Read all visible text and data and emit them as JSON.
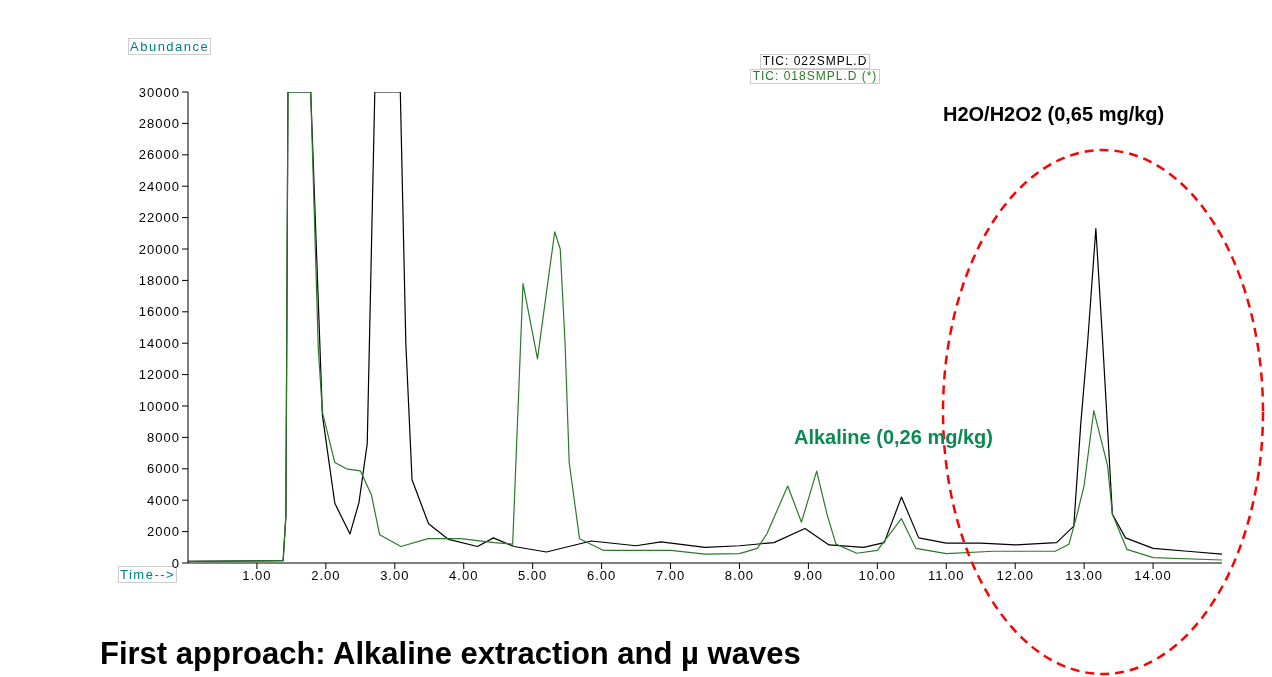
{
  "chart_data": {
    "type": "line",
    "ylabel": "Abundance",
    "xlabel": "Time-->",
    "legend": "top",
    "marker": "none",
    "line_style": "solid",
    "grid": false,
    "xlim": [
      0,
      15
    ],
    "xticks": [
      {
        "value": 1,
        "label": "1.00"
      },
      {
        "value": 2,
        "label": "2.00"
      },
      {
        "value": 3,
        "label": "3.00"
      },
      {
        "value": 4,
        "label": "4.00"
      },
      {
        "value": 5,
        "label": "5.00"
      },
      {
        "value": 6,
        "label": "6.00"
      },
      {
        "value": 7,
        "label": "7.00"
      },
      {
        "value": 8,
        "label": "8.00"
      },
      {
        "value": 9,
        "label": "9.00"
      },
      {
        "value": 10,
        "label": "10.00"
      },
      {
        "value": 11,
        "label": "11.00"
      },
      {
        "value": 12,
        "label": "12.00"
      },
      {
        "value": 13,
        "label": "13.00"
      },
      {
        "value": 14,
        "label": "14.00"
      }
    ],
    "ylim": [
      0,
      30000
    ],
    "yticks": [
      0,
      2000,
      4000,
      6000,
      8000,
      10000,
      12000,
      14000,
      16000,
      18000,
      20000,
      22000,
      24000,
      26000,
      28000,
      30000
    ],
    "series": [
      {
        "name": "TIC: 022SMPL.D",
        "color": "#000000",
        "x": [
          0,
          1.38,
          1.42,
          1.45,
          1.78,
          1.95,
          2.13,
          2.35,
          2.48,
          2.6,
          2.71,
          3.08,
          3.16,
          3.25,
          3.49,
          3.78,
          4.2,
          4.43,
          4.73,
          5.2,
          5.85,
          6.5,
          6.86,
          7.5,
          8.0,
          8.5,
          8.95,
          9.3,
          9.8,
          10.1,
          10.35,
          10.6,
          11.0,
          11.5,
          12.0,
          12.6,
          12.85,
          12.95,
          13.05,
          13.17,
          13.27,
          13.41,
          13.6,
          14.0,
          14.5,
          15.0
        ],
        "values": [
          100,
          150,
          3000,
          30000,
          30000,
          9400,
          3800,
          1850,
          3850,
          7600,
          30000,
          30000,
          14000,
          5300,
          2500,
          1500,
          1050,
          1600,
          1050,
          700,
          1400,
          1100,
          1350,
          1000,
          1100,
          1300,
          2200,
          1150,
          1000,
          1300,
          4200,
          1600,
          1270,
          1270,
          1150,
          1300,
          2350,
          8800,
          14000,
          21300,
          14000,
          3100,
          1600,
          930,
          750,
          560
        ]
      },
      {
        "name": "TIC: 018SMPL.D (*)",
        "color": "#2a7a2a",
        "x": [
          0,
          1.38,
          1.42,
          1.45,
          1.78,
          1.8,
          1.89,
          1.95,
          2.13,
          2.3,
          2.5,
          2.66,
          2.78,
          3.09,
          3.48,
          3.96,
          4.44,
          4.71,
          4.78,
          4.86,
          5.07,
          5.1,
          5.32,
          5.4,
          5.47,
          5.53,
          5.68,
          6.03,
          6.5,
          7.0,
          7.5,
          8.0,
          8.26,
          8.4,
          8.7,
          8.9,
          9.12,
          9.27,
          9.4,
          9.7,
          10.0,
          10.35,
          10.56,
          11.0,
          11.68,
          12.58,
          12.78,
          12.9,
          13.0,
          13.14,
          13.34,
          13.41,
          13.62,
          14.0,
          15.0
        ],
        "values": [
          100,
          150,
          3000,
          30000,
          30000,
          27000,
          13700,
          9600,
          6400,
          6000,
          5870,
          4350,
          1800,
          1050,
          1550,
          1550,
          1300,
          1200,
          9000,
          17800,
          13000,
          14000,
          21100,
          20000,
          14000,
          6400,
          1550,
          800,
          800,
          800,
          560,
          600,
          930,
          1880,
          4900,
          2600,
          5850,
          3100,
          1200,
          620,
          800,
          2820,
          930,
          600,
          750,
          750,
          1200,
          3130,
          4950,
          9700,
          6200,
          3100,
          870,
          340,
          190
        ]
      }
    ],
    "annotations": [
      "H2O/H2O2 (0,65 mg/kg)",
      "Alkaline (0,26 mg/kg)",
      "First approach: Alkaline extraction and µ waves"
    ]
  }
}
